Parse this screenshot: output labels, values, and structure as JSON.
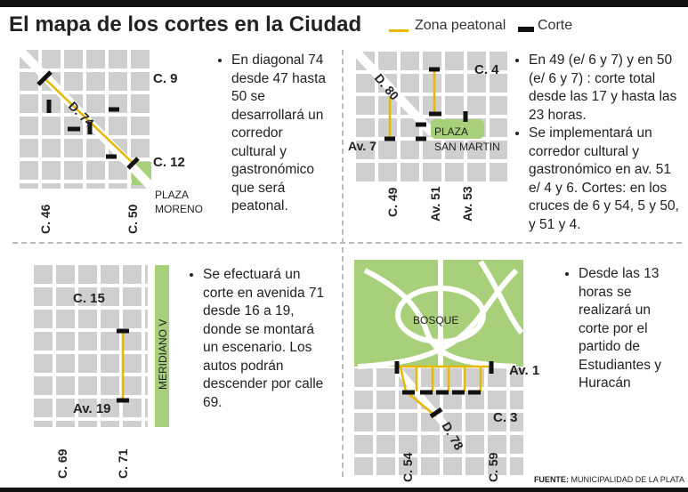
{
  "title": "El mapa de los cortes en la Ciudad",
  "legend": {
    "pedestrian_label": "Zona peatonal",
    "cut_label": "Corte",
    "pedestrian_color": "#e6b800",
    "cut_color": "#111111"
  },
  "panels": [
    {
      "labels": {
        "c9": "C. 9",
        "c12": "C. 12",
        "c46": "C. 46",
        "c50": "C. 50",
        "d74": "D. 74",
        "plaza1": "PLAZA",
        "plaza2": "MORENO"
      },
      "bullets": [
        "En diagonal 74 desde 47 hasta 50 se desarrollará un corredor cultural y gastronómico que será peatonal."
      ]
    },
    {
      "labels": {
        "c4": "C. 4",
        "d80": "D. 80",
        "av7": "Av. 7",
        "plaza1": "PLAZA",
        "plaza2": "SAN MARTIN",
        "c49": "C. 49",
        "av51": "Av. 51",
        "av53": "Av. 53"
      },
      "bullets": [
        "En 49 (e/ 6 y 7) y en 50 (e/ 6 y 7) : corte total desde las 17 y hasta las 23 horas.",
        "Se implementará un corredor cultural y gastronómico en av. 51 e/ 4 y 6. Cortes: en los cruces de 6 y 54, 5 y 50, y 51 y 4."
      ]
    },
    {
      "labels": {
        "c15": "C. 15",
        "av19": "Av. 19",
        "c69": "C. 69",
        "c71": "C. 71",
        "meridiano": "MERIDIANO V"
      },
      "bullets": [
        "Se efectuará un corte en avenida 71 desde 16 a 19, donde se montará un escenario. Los autos podrán descender por calle 69."
      ]
    },
    {
      "labels": {
        "bosque": "BOSQUE",
        "av1": "Av. 1",
        "c3": "C. 3",
        "d78": "D. 78",
        "c54": "C. 54",
        "c59": "C. 59"
      },
      "bullets": [
        "Desde las 13 horas se realizará un corte por el partido de Estudiantes y Huracán"
      ]
    }
  ],
  "source": {
    "label": "FUENTE:",
    "text": "MUNICIPALIDAD DE LA PLATA"
  }
}
